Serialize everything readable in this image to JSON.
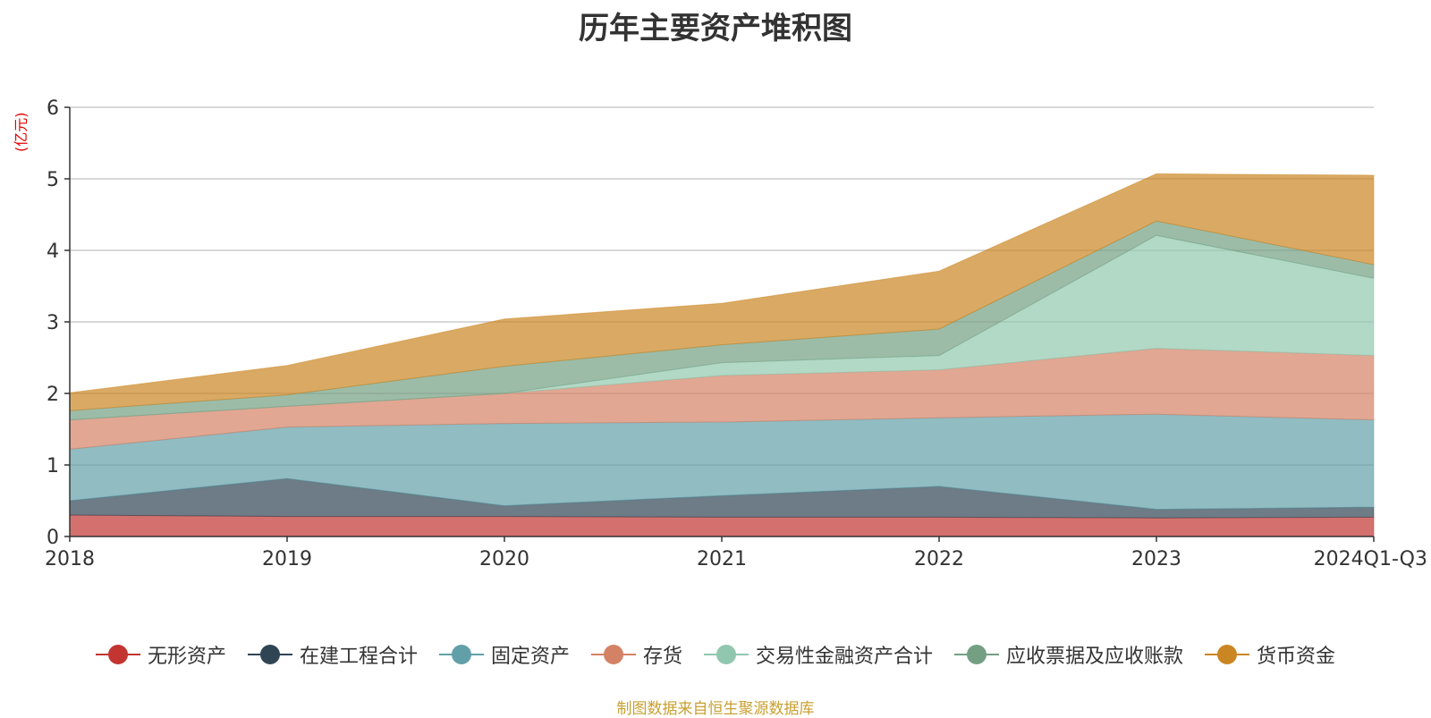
{
  "chart_data": {
    "type": "area",
    "stacked": true,
    "title": "历年主要资产堆积图",
    "ylabel": "(亿元)",
    "xlabel": "",
    "categories": [
      "2018",
      "2019",
      "2020",
      "2021",
      "2022",
      "2023",
      "2024Q1-Q3"
    ],
    "ylim": [
      0,
      6
    ],
    "yticks": [
      0,
      1,
      2,
      3,
      4,
      5,
      6
    ],
    "grid": true,
    "legend_position": "bottom",
    "series": [
      {
        "name": "无形资产",
        "color": "#c23531",
        "values": [
          0.3,
          0.28,
          0.28,
          0.27,
          0.27,
          0.26,
          0.27
        ]
      },
      {
        "name": "在建工程合计",
        "color": "#2f4554",
        "values": [
          0.2,
          0.53,
          0.15,
          0.3,
          0.43,
          0.12,
          0.14
        ]
      },
      {
        "name": "固定资产",
        "color": "#61a0a8",
        "values": [
          0.72,
          0.72,
          1.15,
          1.03,
          0.96,
          1.33,
          1.22
        ]
      },
      {
        "name": "存货",
        "color": "#d48265",
        "values": [
          0.41,
          0.29,
          0.42,
          0.65,
          0.67,
          0.92,
          0.9
        ]
      },
      {
        "name": "交易性金融资产合计",
        "color": "#91c7ae",
        "values": [
          0.0,
          0.0,
          0.0,
          0.18,
          0.2,
          1.58,
          1.08
        ]
      },
      {
        "name": "应收票据及应收账款",
        "color": "#749f83",
        "values": [
          0.13,
          0.16,
          0.38,
          0.25,
          0.37,
          0.2,
          0.19
        ]
      },
      {
        "name": "货币资金",
        "color": "#ca8622",
        "values": [
          0.25,
          0.41,
          0.66,
          0.58,
          0.81,
          0.66,
          1.25
        ]
      }
    ]
  },
  "source_note": "制图数据来自恒生聚源数据库"
}
